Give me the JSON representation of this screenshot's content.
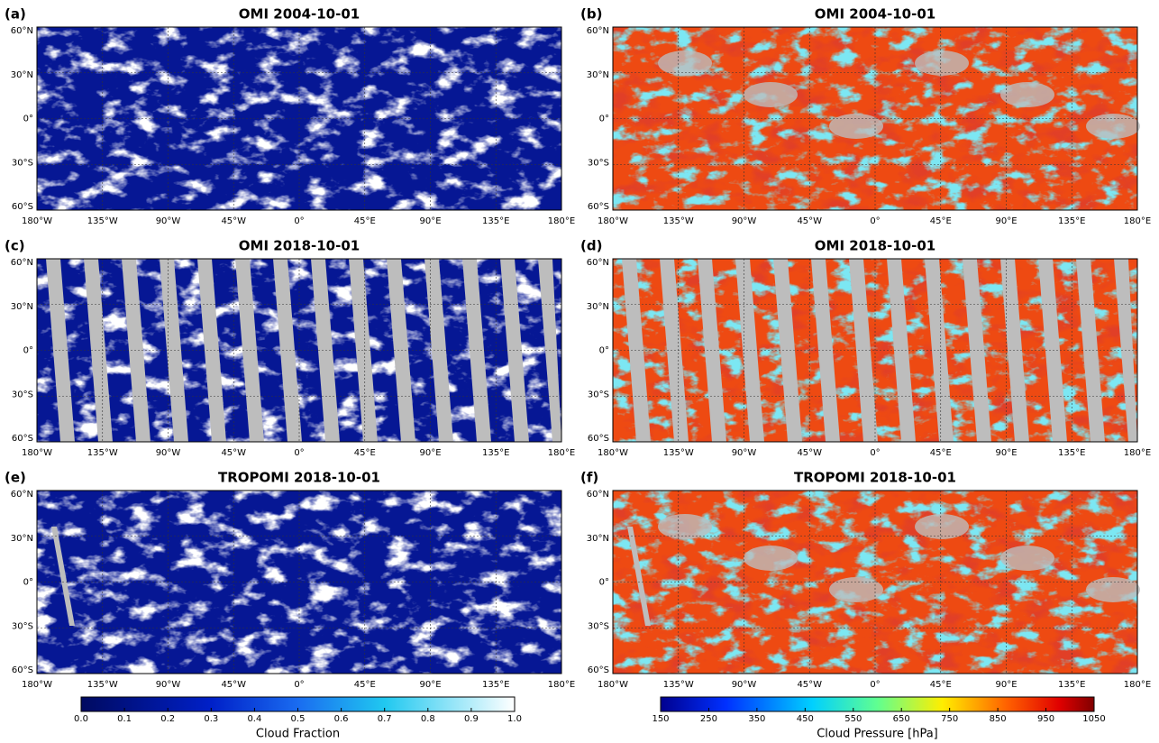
{
  "panels": [
    {
      "label": "(a)",
      "title": "OMI 2004-10-01"
    },
    {
      "label": "(b)",
      "title": "OMI 2004-10-01"
    },
    {
      "label": "(c)",
      "title": "OMI 2018-10-01"
    },
    {
      "label": "(d)",
      "title": "OMI 2018-10-01"
    },
    {
      "label": "(e)",
      "title": "TROPOMI 2018-10-01"
    },
    {
      "label": "(f)",
      "title": "TROPOMI 2018-10-01"
    }
  ],
  "lon_ticks": [
    "180°W",
    "135°W",
    "90°W",
    "45°W",
    "0°",
    "45°E",
    "90°E",
    "135°E",
    "180°E"
  ],
  "lat_ticks": [
    "60°N",
    "30°N",
    "0°",
    "30°S",
    "60°S"
  ],
  "colorbars": [
    {
      "label": "Cloud Fraction",
      "ticks": [
        "0.0",
        "0.1",
        "0.2",
        "0.3",
        "0.4",
        "0.5",
        "0.6",
        "0.7",
        "0.8",
        "0.9",
        "1.0"
      ]
    },
    {
      "label": "Cloud Pressure [hPa]",
      "ticks": [
        150,
        250,
        350,
        450,
        550,
        650,
        750,
        850,
        950,
        1050
      ]
    }
  ]
}
